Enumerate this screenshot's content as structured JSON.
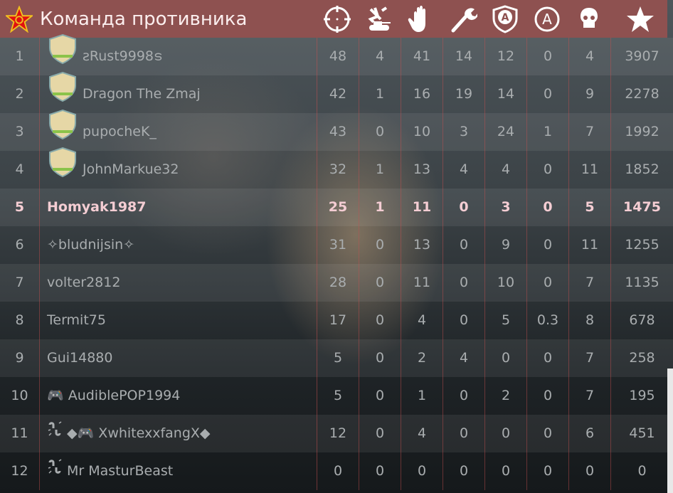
{
  "header": {
    "title": "Команда противника",
    "emblem_icon": "soviet-star-icon",
    "columns": [
      "crosshair-icon",
      "air-ground-kills-icon",
      "assists-icon",
      "wrench-icon",
      "shield-a-icon",
      "circle-a-icon",
      "skull-icon",
      "star-icon"
    ]
  },
  "colors": {
    "header": "#8e5150",
    "highlight_text": "#f4cdd3",
    "text": "#a9adaf"
  },
  "rows": [
    {
      "pos": "1",
      "name": "ƨRust9998ട",
      "badge": "rank-1-badge",
      "stats": [
        "48",
        "4",
        "41",
        "14",
        "12",
        "0",
        "4",
        "3907"
      ]
    },
    {
      "pos": "2",
      "name": "Dragon The Zmaj",
      "badge": "soldier-badge",
      "stats": [
        "42",
        "1",
        "16",
        "19",
        "14",
        "0",
        "9",
        "2278"
      ]
    },
    {
      "pos": "3",
      "name": "pupocheK_",
      "badge": "shell-badge",
      "stats": [
        "43",
        "0",
        "10",
        "3",
        "24",
        "1",
        "7",
        "1992"
      ]
    },
    {
      "pos": "4",
      "name": "JohnMarkue32",
      "badge": "headphones-badge",
      "stats": [
        "32",
        "1",
        "13",
        "4",
        "4",
        "0",
        "11",
        "1852"
      ]
    },
    {
      "pos": "5",
      "name": "Homyak1987",
      "highlight": true,
      "stats": [
        "25",
        "1",
        "11",
        "0",
        "3",
        "0",
        "5",
        "1475"
      ]
    },
    {
      "pos": "6",
      "name": "✧bludnijsin✧",
      "stats": [
        "31",
        "0",
        "13",
        "0",
        "9",
        "0",
        "11",
        "1255"
      ]
    },
    {
      "pos": "7",
      "name": "volter2812",
      "stats": [
        "28",
        "0",
        "11",
        "0",
        "10",
        "0",
        "7",
        "1135"
      ]
    },
    {
      "pos": "8",
      "name": "Termit75",
      "stats": [
        "17",
        "0",
        "4",
        "0",
        "5",
        "0.3",
        "8",
        "678"
      ]
    },
    {
      "pos": "9",
      "name": "Gui14880",
      "stats": [
        "5",
        "0",
        "2",
        "4",
        "0",
        "0",
        "7",
        "258"
      ]
    },
    {
      "pos": "10",
      "name": "🎮 AudiblePOP1994",
      "stats": [
        "5",
        "0",
        "1",
        "0",
        "2",
        "0",
        "7",
        "195"
      ]
    },
    {
      "pos": "11",
      "name": "◆🎮 XwhitexxfangX◆",
      "disconnected": true,
      "stats": [
        "12",
        "0",
        "4",
        "0",
        "0",
        "0",
        "6",
        "451"
      ]
    },
    {
      "pos": "12",
      "name": "Mr MasturBeast",
      "disconnected": true,
      "stats": [
        "0",
        "0",
        "0",
        "0",
        "0",
        "0",
        "0",
        "0"
      ]
    }
  ]
}
